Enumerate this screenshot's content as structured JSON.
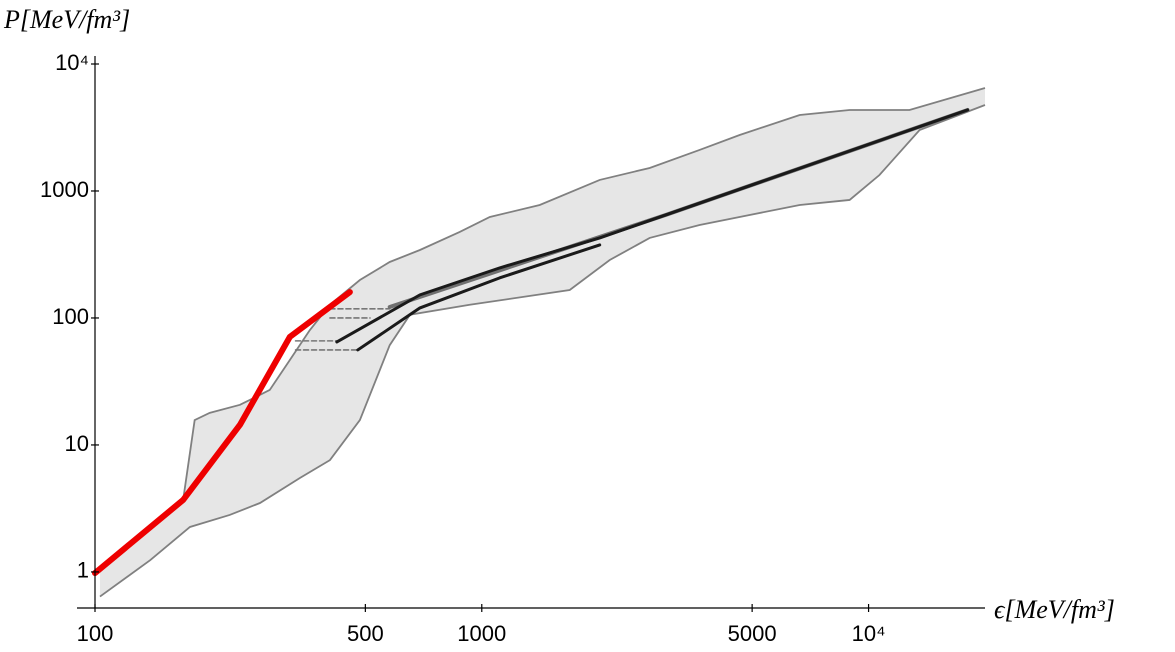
{
  "chart_data": {
    "type": "line",
    "xlabel": "ϵ[MeV/fm³]",
    "ylabel": "P[MeV/fm³]",
    "xscale": "log",
    "yscale": "log",
    "xlim": [
      100,
      20000
    ],
    "ylim": [
      0.52,
      10000
    ],
    "xticks": [
      100,
      500,
      1000,
      5000,
      {
        "value": 10000,
        "label": "10⁴"
      }
    ],
    "yticks": [
      1,
      10,
      100,
      1000,
      {
        "value": 10000,
        "label": "10⁴"
      }
    ],
    "band": {
      "color": "#e6e6e6",
      "edge_color": "#808080",
      "upper": {
        "x": [
          103,
          169,
          181,
          198,
          237,
          283,
          319,
          359,
          405,
          484,
          578,
          692,
          877,
          1049,
          1412,
          2018,
          2717,
          3657,
          4642,
          6637,
          8933,
          12760,
          20000
        ],
        "y": [
          1.04,
          3.69,
          15.7,
          17.9,
          20.7,
          27.1,
          46.7,
          80,
          127,
          199,
          276,
          343,
          476,
          624,
          776,
          1222,
          1518,
          2104,
          2760,
          3966,
          4345,
          4345,
          6470
        ]
      },
      "lower": {
        "x": [
          103,
          139,
          176,
          223,
          267,
          339,
          405,
          484,
          578,
          652,
          931,
          1688,
          2142,
          2717,
          3657,
          4924,
          6637,
          8933,
          10670,
          13550,
          20000
        ],
        "y": [
          0.64,
          1.24,
          2.26,
          2.81,
          3.49,
          5.5,
          7.6,
          15.7,
          61,
          106,
          127,
          166,
          286,
          427,
          540,
          647,
          776,
          850,
          1336,
          3020,
          4755
        ]
      }
    },
    "series": [
      {
        "color": "#777777",
        "dash": true,
        "x": [
          405,
          578
        ],
        "values": [
          118,
          118
        ]
      },
      {
        "color": "#777777",
        "dash": true,
        "x": [
          405,
          514
        ],
        "values": [
          100,
          100
        ]
      },
      {
        "color": "#777777",
        "dash": true,
        "x": [
          330,
          422
        ],
        "values": [
          66,
          66
        ]
      },
      {
        "color": "#777777",
        "dash": true,
        "x": [
          330,
          478
        ],
        "values": [
          56,
          56
        ]
      },
      {
        "color": "#ee0000",
        "width": 6,
        "x": [
          100,
          169,
          237,
          319,
          456
        ],
        "values": [
          0.98,
          3.69,
          14.4,
          71,
          160
        ]
      },
      {
        "color": "#707070",
        "width": 4,
        "x": [
          578,
          3000,
          18030
        ],
        "values": [
          122,
          650,
          4345
        ]
      },
      {
        "color": "#1a1a1a",
        "width": 3,
        "x": [
          422,
          692,
          1113,
          2018,
          18030
        ],
        "values": [
          64.7,
          152,
          248,
          427,
          4345
        ]
      },
      {
        "color": "#1a1a1a",
        "width": 3,
        "x": [
          478,
          692,
          1113,
          2018
        ],
        "values": [
          56,
          120,
          207,
          376
        ]
      }
    ]
  }
}
